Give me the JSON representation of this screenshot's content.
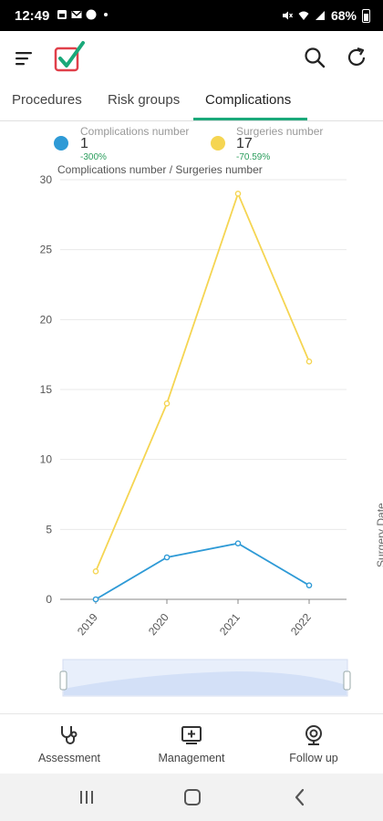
{
  "status_bar": {
    "time": "12:49",
    "battery": "68%"
  },
  "app": {
    "logo_name": "checklist-logo"
  },
  "tabs": [
    {
      "label": "Procedures",
      "active": false
    },
    {
      "label": "Risk groups",
      "active": false
    },
    {
      "label": "Complications",
      "active": true
    }
  ],
  "legend": [
    {
      "name": "Complications number",
      "value": "1",
      "change": "-300%",
      "color": "#2e9ad6"
    },
    {
      "name": "Surgeries number",
      "value": "17",
      "change": "-70.59%",
      "color": "#f5d552"
    }
  ],
  "chart_data": {
    "type": "line",
    "title": "Complications number / Surgeries number",
    "xlabel": "Surgery Date",
    "ylabel": "",
    "categories": [
      "2019",
      "2020",
      "2021",
      "2022"
    ],
    "ylim": [
      0,
      30
    ],
    "yticks": [
      0,
      5,
      10,
      15,
      20,
      25,
      30
    ],
    "grid": true,
    "legend_position": "top",
    "series": [
      {
        "name": "Complications number",
        "values": [
          0,
          3,
          4,
          1
        ],
        "color": "#2e9ad6"
      },
      {
        "name": "Surgeries number",
        "values": [
          2,
          14,
          29,
          17
        ],
        "color": "#f5d552"
      }
    ]
  },
  "bottom_nav": [
    {
      "label": "Assessment",
      "icon": "stethoscope-icon"
    },
    {
      "label": "Management",
      "icon": "monitor-plus-icon"
    },
    {
      "label": "Follow up",
      "icon": "webcam-icon"
    }
  ],
  "system_nav": {
    "recents": "recents-icon",
    "home": "home-icon",
    "back": "back-icon"
  }
}
